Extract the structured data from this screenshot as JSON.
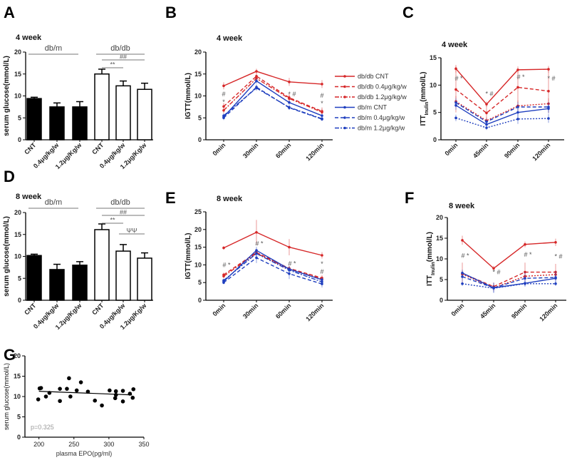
{
  "chart_data": [
    {
      "id": "A",
      "type": "bar",
      "panel_label": "A",
      "title": "4 week",
      "ylabel": "serum glucose(mmol/L)",
      "ylim": [
        0,
        20
      ],
      "yticks": [
        0,
        5,
        10,
        15,
        20
      ],
      "categories": [
        "CNT",
        "0.4μg/kg/w",
        "1.2μg/Kg/w",
        "CNT",
        "0.4μg/kg/w",
        "1.2μg/Kg/w"
      ],
      "values": [
        9.4,
        7.5,
        7.5,
        15.0,
        12.3,
        11.5
      ],
      "errors": [
        0.3,
        0.9,
        1.2,
        1.1,
        1.1,
        1.4
      ],
      "fills": [
        "#000000",
        "#000000",
        "#000000",
        "#ffffff",
        "#ffffff",
        "#ffffff"
      ],
      "groups": [
        {
          "label": "db/m",
          "from": 0,
          "to": 2
        },
        {
          "label": "db/db",
          "from": 3,
          "to": 5
        }
      ],
      "brackets": [
        {
          "label": "##",
          "from": 3,
          "to": 5
        },
        {
          "label": "**",
          "from": 3,
          "to": 4
        }
      ]
    },
    {
      "id": "D",
      "type": "bar",
      "panel_label": "D",
      "title": "8 week",
      "ylabel": "serum glucose(mmol/L)",
      "ylim": [
        0,
        20
      ],
      "yticks": [
        0,
        5,
        10,
        15,
        20
      ],
      "categories": [
        "CNT",
        "0.4μg/kg/w",
        "1.2μg/Kg/w",
        "CNT",
        "0.4μg/kg/w",
        "1.2μg/Kg/w"
      ],
      "values": [
        10.2,
        7.0,
        8.0,
        16.1,
        11.2,
        9.6
      ],
      "errors": [
        0.3,
        1.2,
        0.8,
        1.3,
        1.5,
        1.2
      ],
      "fills": [
        "#000000",
        "#000000",
        "#000000",
        "#ffffff",
        "#ffffff",
        "#ffffff"
      ],
      "groups": [
        {
          "label": "db/m",
          "from": 0,
          "to": 2
        },
        {
          "label": "db/db",
          "from": 3,
          "to": 5
        }
      ],
      "brackets": [
        {
          "label": "##",
          "from": 3,
          "to": 5
        },
        {
          "label": "**",
          "from": 3,
          "to": 4
        },
        {
          "label": "ΨΨ",
          "from": 4,
          "to": 5,
          "low": true
        }
      ]
    },
    {
      "id": "B",
      "type": "line",
      "panel_label": "B",
      "title": "4 week",
      "ylabel": "IGTT(mmol/L)",
      "ylim": [
        0,
        20
      ],
      "yticks": [
        0,
        5,
        10,
        15,
        20
      ],
      "categories": [
        "0min",
        "30min",
        "60min",
        "120min"
      ],
      "legend": "right",
      "series": [
        {
          "name": "db/db CNT",
          "color": "#d62728",
          "style": "solid",
          "values": [
            12.3,
            15.6,
            13.2,
            12.7
          ],
          "errors": [
            0.8,
            0.6,
            0.9,
            0.9
          ]
        },
        {
          "name": "db/db 0.4μg/kg/w",
          "color": "#d62728",
          "style": "dashed",
          "values": [
            7.6,
            14.5,
            9.6,
            6.5
          ],
          "errors": [
            0.8,
            0.6,
            0.9,
            0.9
          ]
        },
        {
          "name": "db/db 1.2μg/kg/w",
          "color": "#d62728",
          "style": "dashdot",
          "values": [
            6.7,
            14.0,
            9.4,
            6.3
          ],
          "errors": [
            0.7,
            0.6,
            0.8,
            0.8
          ]
        },
        {
          "name": "db/m CNT",
          "color": "#1f3fbf",
          "style": "solid",
          "values": [
            5.2,
            13.4,
            8.5,
            5.5
          ],
          "errors": [
            0.5,
            0.6,
            0.5,
            0.4
          ]
        },
        {
          "name": "db/m 0.4μg/kg/w",
          "color": "#1f3fbf",
          "style": "dashed",
          "values": [
            5.0,
            12.0,
            7.3,
            4.7
          ],
          "errors": [
            0.5,
            0.6,
            0.5,
            0.4
          ]
        },
        {
          "name": "db/m 1.2μg/kg/w",
          "color": "#1f3fbf",
          "style": "dashdot",
          "values": [
            5.5,
            11.8,
            7.4,
            4.8
          ],
          "errors": [
            0.5,
            0.6,
            0.5,
            0.4
          ]
        }
      ],
      "annotations": [
        {
          "x": 0,
          "y": 10.4,
          "text": "#"
        },
        {
          "x": 0,
          "y": 9.0,
          "text": "*"
        },
        {
          "x": 2,
          "y": 10.4,
          "text": "* #"
        },
        {
          "x": 3,
          "y": 10.1,
          "text": "#"
        },
        {
          "x": 3,
          "y": 8.7,
          "text": "*"
        }
      ]
    },
    {
      "id": "E",
      "type": "line",
      "panel_label": "E",
      "title": "8 week",
      "ylabel": "IGTT(mmol/L)",
      "ylim": [
        0,
        25
      ],
      "yticks": [
        0,
        5,
        10,
        15,
        20,
        25
      ],
      "categories": [
        "0min",
        "30min",
        "60min",
        "120min"
      ],
      "series": [
        {
          "color": "#d62728",
          "style": "solid",
          "values": [
            14.8,
            19.2,
            15.0,
            12.7
          ],
          "errors": [
            0.5,
            3.5,
            2.3,
            0.9
          ]
        },
        {
          "color": "#d62728",
          "style": "dashed",
          "values": [
            7.2,
            13.5,
            9.0,
            6.3
          ],
          "errors": [
            0.6,
            0.8,
            0.8,
            0.8
          ]
        },
        {
          "color": "#d62728",
          "style": "dashdot",
          "values": [
            6.8,
            13.3,
            8.8,
            6.0
          ],
          "errors": [
            0.6,
            0.8,
            0.8,
            0.8
          ]
        },
        {
          "color": "#1f3fbf",
          "style": "solid",
          "values": [
            5.3,
            14.1,
            8.8,
            5.8
          ],
          "errors": [
            0.5,
            1.0,
            0.8,
            0.6
          ]
        },
        {
          "color": "#1f3fbf",
          "style": "dashed",
          "values": [
            5.0,
            12.0,
            7.5,
            4.6
          ],
          "errors": [
            0.5,
            1.5,
            1.5,
            1.0
          ]
        },
        {
          "color": "#1f3fbf",
          "style": "dashdot",
          "values": [
            5.6,
            13.2,
            8.5,
            5.2
          ],
          "errors": [
            0.5,
            1.0,
            0.8,
            0.6
          ]
        }
      ],
      "annotations": [
        {
          "x": 0,
          "y": 10.0,
          "text": "# *"
        },
        {
          "x": 1,
          "y": 16.0,
          "text": "# *"
        },
        {
          "x": 2,
          "y": 10.4,
          "text": "# *"
        },
        {
          "x": 3,
          "y": 10.3,
          "text": "*"
        },
        {
          "x": 3,
          "y": 8.9,
          "text": "#"
        }
      ]
    },
    {
      "id": "C",
      "type": "line",
      "panel_label": "C",
      "title": "4 week",
      "ylabel": "ITT",
      "ylabel_sub": "Inulin",
      "ylabel_unit": "(mmol/L)",
      "ylim": [
        0,
        15
      ],
      "yticks": [
        0,
        5,
        10,
        15
      ],
      "categories": [
        "0min",
        "45min",
        "90min",
        "120min"
      ],
      "series": [
        {
          "color": "#d62728",
          "style": "solid",
          "values": [
            13.0,
            6.5,
            12.8,
            12.9
          ],
          "errors": [
            0.7,
            0.5,
            0.6,
            0.6
          ]
        },
        {
          "color": "#d62728",
          "style": "dashed",
          "values": [
            9.2,
            4.9,
            9.6,
            8.9
          ],
          "errors": [
            4.2,
            1.5,
            3.0,
            4.0
          ]
        },
        {
          "color": "#d62728",
          "style": "dotted",
          "values": [
            7.0,
            3.5,
            6.2,
            6.6
          ],
          "errors": [
            1.0,
            0.6,
            1.0,
            1.0
          ]
        },
        {
          "color": "#1f3fbf",
          "style": "solid",
          "values": [
            6.3,
            2.8,
            5.0,
            5.7
          ],
          "errors": [
            0.8,
            0.6,
            1.3,
            0.9
          ]
        },
        {
          "color": "#1f3fbf",
          "style": "dashed",
          "values": [
            6.8,
            3.3,
            6.0,
            6.0
          ],
          "errors": [
            0.8,
            0.6,
            0.9,
            0.9
          ]
        },
        {
          "color": "#1f3fbf",
          "style": "dotted",
          "values": [
            4.0,
            2.2,
            3.8,
            3.9
          ],
          "errors": [
            0.6,
            0.4,
            0.9,
            0.8
          ]
        }
      ],
      "annotations": [
        {
          "x": 0,
          "y": 11.2,
          "text": "# *"
        },
        {
          "x": 1,
          "y": 8.4,
          "text": "* #"
        },
        {
          "x": 2,
          "y": 11.5,
          "text": "# *"
        },
        {
          "x": 3,
          "y": 11.2,
          "text": "* #"
        }
      ]
    },
    {
      "id": "F",
      "type": "line",
      "panel_label": "F",
      "title": "8 week",
      "ylabel": "ITT",
      "ylabel_sub": "Inulin",
      "ylabel_unit": "(mmol/L)",
      "ylim": [
        0,
        20
      ],
      "yticks": [
        0,
        5,
        10,
        15,
        20
      ],
      "categories": [
        "0min",
        "45min",
        "90min",
        "120min"
      ],
      "series": [
        {
          "color": "#d62728",
          "style": "solid",
          "values": [
            14.5,
            7.7,
            13.5,
            14.0
          ],
          "errors": [
            1.1,
            0.6,
            0.7,
            0.9
          ]
        },
        {
          "color": "#d62728",
          "style": "dashed",
          "values": [
            6.5,
            3.3,
            6.8,
            6.8
          ],
          "errors": [
            2.6,
            1.0,
            2.3,
            2.0
          ]
        },
        {
          "color": "#d62728",
          "style": "dotted",
          "values": [
            6.3,
            3.0,
            5.8,
            6.2
          ],
          "errors": [
            1.0,
            0.8,
            1.0,
            1.0
          ]
        },
        {
          "color": "#1f3fbf",
          "style": "solid",
          "values": [
            6.6,
            3.0,
            4.1,
            5.3
          ],
          "errors": [
            0.8,
            1.2,
            0.8,
            1.0
          ]
        },
        {
          "color": "#1f3fbf",
          "style": "dashed",
          "values": [
            5.7,
            3.0,
            5.3,
            5.5
          ],
          "errors": [
            1.2,
            1.2,
            1.5,
            1.5
          ]
        },
        {
          "color": "#1f3fbf",
          "style": "dotted",
          "values": [
            4.0,
            2.9,
            4.0,
            4.0
          ],
          "errors": [
            0.5,
            0.5,
            0.6,
            0.5
          ]
        }
      ],
      "annotations": [
        {
          "x": 0,
          "y": 10.8,
          "text": "# *"
        },
        {
          "x": 1,
          "y": 6.8,
          "text": "* #"
        },
        {
          "x": 2,
          "y": 11.0,
          "text": "# *"
        },
        {
          "x": 3,
          "y": 10.6,
          "text": "* #"
        }
      ]
    },
    {
      "id": "G",
      "type": "scatter",
      "panel_label": "G",
      "xlabel": "plasma EPO(pg/ml)",
      "ylabel": "serum glucose(mmol/L)",
      "xlim": [
        180,
        350
      ],
      "ylim": [
        0,
        20
      ],
      "xticks": [
        200,
        250,
        300,
        350
      ],
      "yticks": [
        0,
        5,
        10,
        15,
        20
      ],
      "points": [
        [
          199,
          9.3
        ],
        [
          201,
          12.0
        ],
        [
          203,
          12.1
        ],
        [
          210,
          10.0
        ],
        [
          215,
          10.9
        ],
        [
          230,
          11.9
        ],
        [
          230,
          8.9
        ],
        [
          240,
          11.9
        ],
        [
          243,
          14.5
        ],
        [
          245,
          10.0
        ],
        [
          254,
          11.5
        ],
        [
          260,
          13.5
        ],
        [
          270,
          11.2
        ],
        [
          280,
          9.0
        ],
        [
          290,
          7.8
        ],
        [
          301,
          11.5
        ],
        [
          309,
          9.6
        ],
        [
          310,
          11.3
        ],
        [
          310,
          10.4
        ],
        [
          320,
          11.4
        ],
        [
          320,
          8.8
        ],
        [
          330,
          10.7
        ],
        [
          334,
          9.7
        ],
        [
          335,
          11.8
        ]
      ],
      "fit_line": [
        [
          200,
          11.3
        ],
        [
          333,
          10.4
        ]
      ],
      "annotation": "p=0.325"
    }
  ]
}
